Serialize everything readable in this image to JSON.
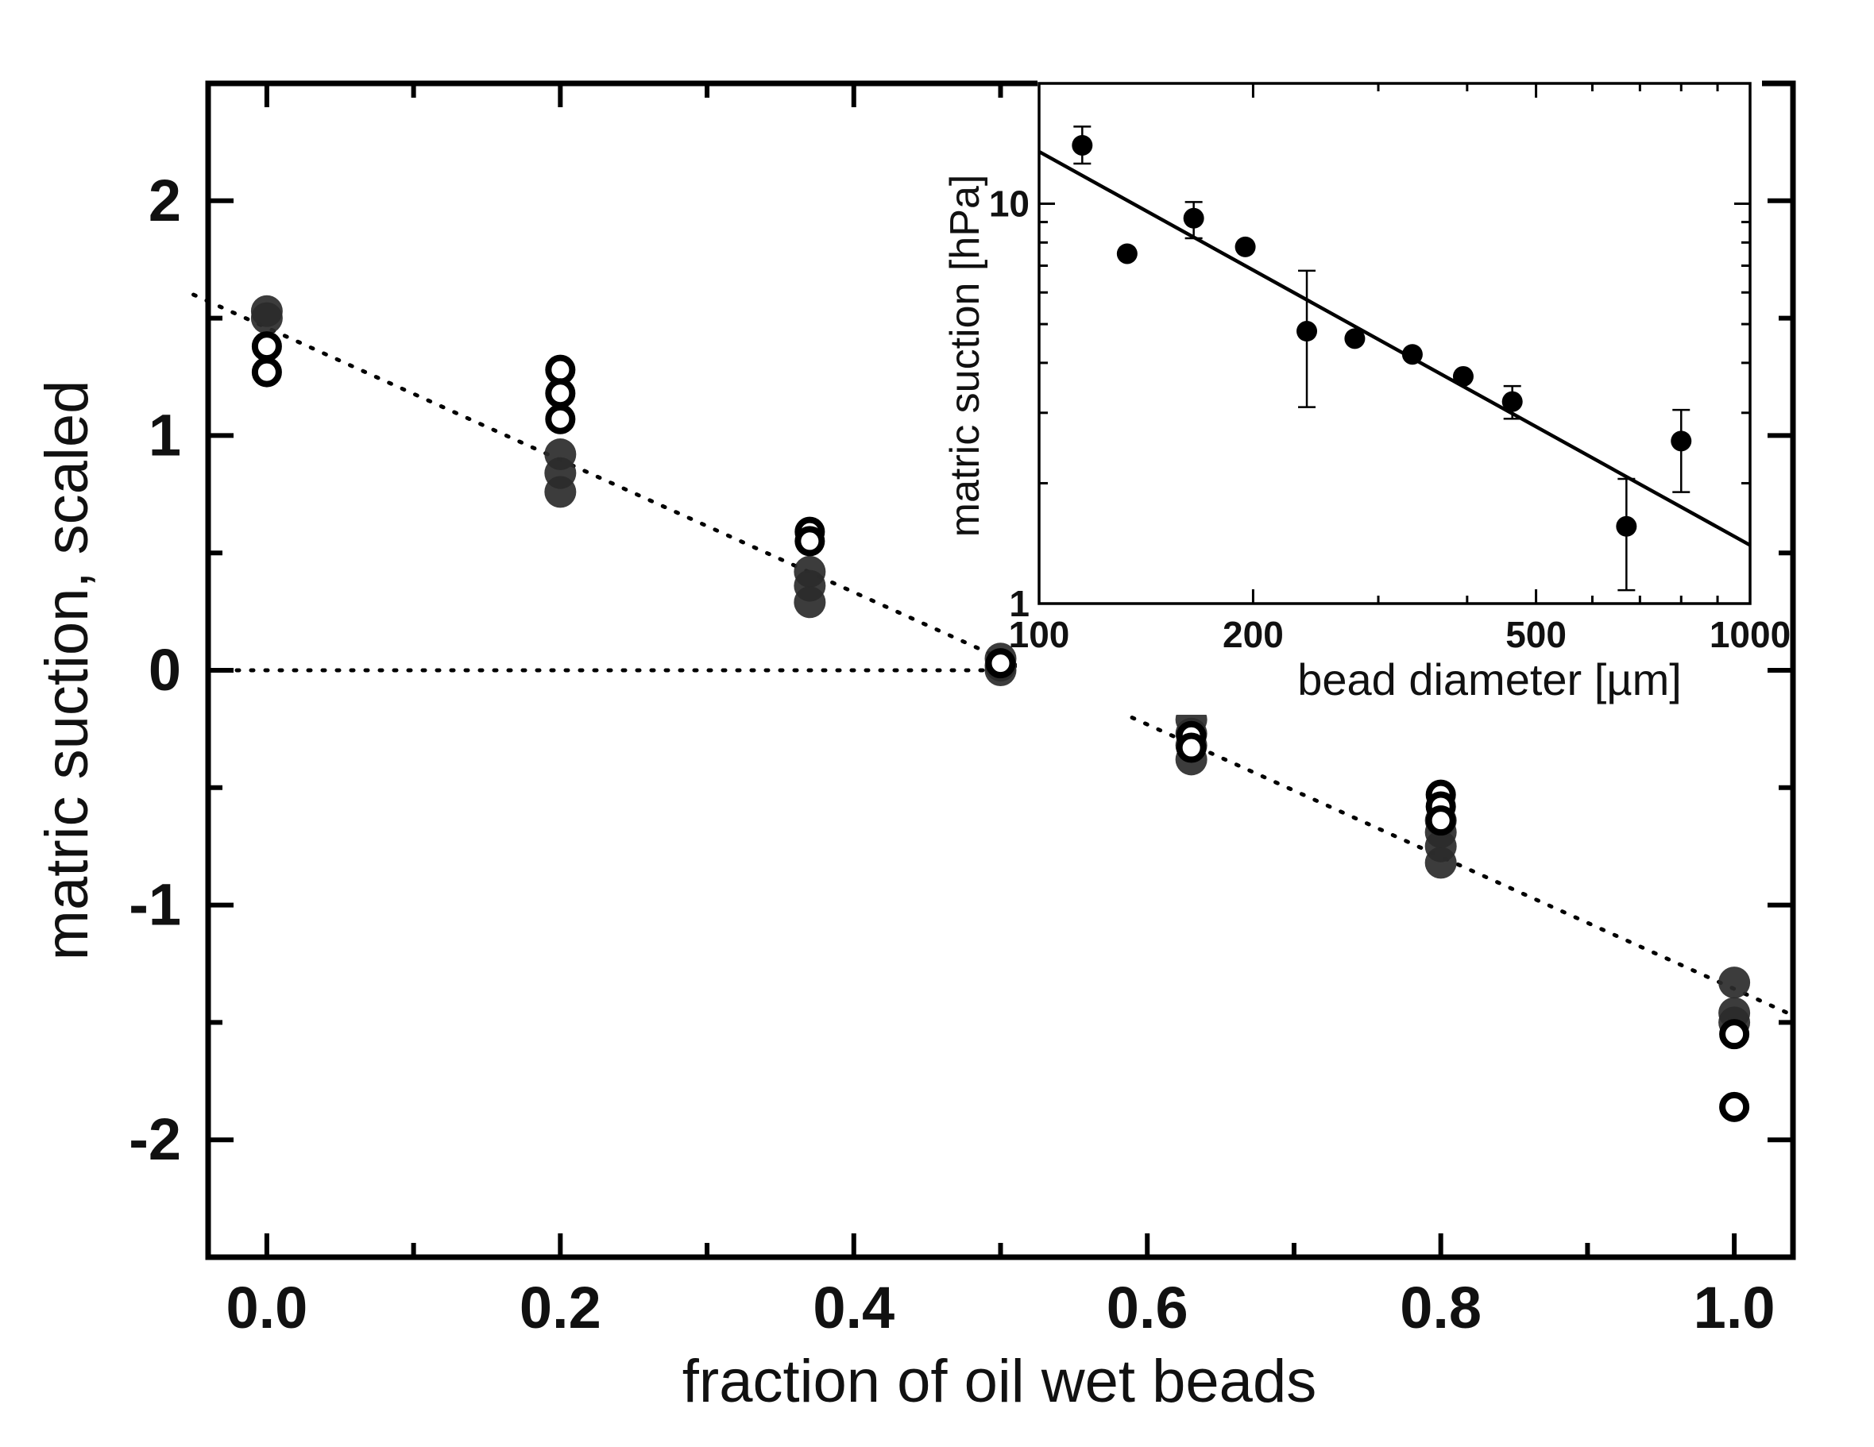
{
  "chart_data": [
    {
      "id": "main",
      "type": "scatter",
      "xlabel": "fraction of oil wet beads",
      "ylabel": "matric suction, scaled",
      "xlim": [
        -0.04,
        1.04
      ],
      "ylim": [
        -2.5,
        2.5
      ],
      "xticks": [
        "0.0",
        "0.2",
        "0.4",
        "0.6",
        "0.8",
        "1.0"
      ],
      "yticks": [
        "2",
        "1",
        "0",
        "-1",
        "-2"
      ],
      "series": [
        {
          "name": "filled",
          "marker": "filled-circle",
          "color": "#2b2b2b",
          "points": [
            [
              0.0,
              1.53
            ],
            [
              0.0,
              1.5
            ],
            [
              0.2,
              0.92
            ],
            [
              0.2,
              0.84
            ],
            [
              0.2,
              0.76
            ],
            [
              0.37,
              0.42
            ],
            [
              0.37,
              0.36
            ],
            [
              0.37,
              0.29
            ],
            [
              0.5,
              0.05
            ],
            [
              0.5,
              0.02
            ],
            [
              0.5,
              0.0
            ],
            [
              0.63,
              -0.21
            ],
            [
              0.63,
              -0.27
            ],
            [
              0.63,
              -0.32
            ],
            [
              0.63,
              -0.38
            ],
            [
              0.8,
              -0.64
            ],
            [
              0.8,
              -0.69
            ],
            [
              0.8,
              -0.75
            ],
            [
              0.8,
              -0.82
            ],
            [
              1.0,
              -1.33
            ],
            [
              1.0,
              -1.46
            ],
            [
              1.0,
              -1.5
            ]
          ]
        },
        {
          "name": "open",
          "marker": "open-circle",
          "color": "#000000",
          "points": [
            [
              0.0,
              1.38
            ],
            [
              0.0,
              1.27
            ],
            [
              0.2,
              1.28
            ],
            [
              0.2,
              1.18
            ],
            [
              0.2,
              1.07
            ],
            [
              0.37,
              0.59
            ],
            [
              0.37,
              0.55
            ],
            [
              0.5,
              0.03
            ],
            [
              0.63,
              -0.28
            ],
            [
              0.63,
              -0.33
            ],
            [
              0.8,
              -0.53
            ],
            [
              0.8,
              -0.58
            ],
            [
              0.8,
              -0.64
            ],
            [
              1.0,
              -1.55
            ],
            [
              1.0,
              -1.86
            ]
          ]
        }
      ],
      "reference_lines": [
        {
          "name": "linear-fit",
          "style": "dotted",
          "from": [
            -0.05,
            1.6
          ],
          "to": [
            1.04,
            -1.47
          ]
        },
        {
          "name": "zero-line",
          "style": "dotted",
          "from": [
            -0.04,
            0.0
          ],
          "to": [
            0.52,
            0.0
          ]
        }
      ]
    },
    {
      "id": "inset",
      "type": "scatter",
      "scale": "log-log",
      "xlabel": "bead diameter [µm]",
      "ylabel": "matric suction [hPa]",
      "xlim": [
        100,
        1000
      ],
      "ylim": [
        1,
        20
      ],
      "xticks": [
        "100",
        "200",
        "500",
        "1000"
      ],
      "yticks": [
        "10",
        "1"
      ],
      "points": [
        {
          "x": 115,
          "y": 14.0,
          "yerr_low": 12.6,
          "yerr_high": 15.6
        },
        {
          "x": 133,
          "y": 7.5
        },
        {
          "x": 165,
          "y": 9.2,
          "yerr_low": 8.2,
          "yerr_high": 10.1
        },
        {
          "x": 195,
          "y": 7.8
        },
        {
          "x": 238,
          "y": 4.8,
          "yerr_low": 3.1,
          "yerr_high": 6.8
        },
        {
          "x": 278,
          "y": 4.6
        },
        {
          "x": 335,
          "y": 4.2
        },
        {
          "x": 395,
          "y": 3.7
        },
        {
          "x": 463,
          "y": 3.2,
          "yerr_low": 2.9,
          "yerr_high": 3.5
        },
        {
          "x": 670,
          "y": 1.56,
          "yerr_low": 1.08,
          "yerr_high": 2.05
        },
        {
          "x": 800,
          "y": 2.55,
          "yerr_low": 1.9,
          "yerr_high": 3.05
        }
      ],
      "fit": {
        "style": "solid",
        "from": [
          100,
          13.5
        ],
        "to": [
          1000,
          1.4
        ]
      }
    }
  ]
}
